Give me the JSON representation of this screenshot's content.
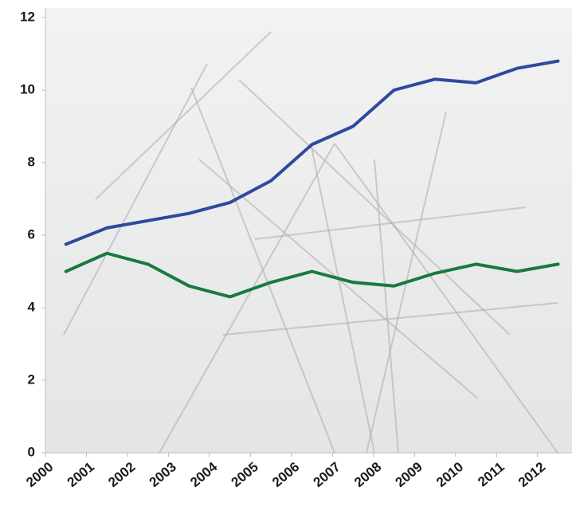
{
  "chart_data": {
    "type": "line",
    "x": [
      2000.5,
      2001.5,
      2002.5,
      2003.5,
      2004.5,
      2005.5,
      2006.5,
      2007.5,
      2008.5,
      2009.5,
      2010.5,
      2011.5,
      2012.5
    ],
    "series": [
      {
        "color": "#2e4a9e",
        "values": [
          5.75,
          6.2,
          6.4,
          6.6,
          6.9,
          7.5,
          8.5,
          9.0,
          10.0,
          10.3,
          10.2,
          10.6,
          10.8
        ]
      },
      {
        "color": "#1a7a3e",
        "values": [
          5.0,
          5.5,
          5.2,
          4.6,
          4.3,
          4.7,
          5.0,
          4.7,
          4.6,
          4.95,
          5.2,
          5.0,
          5.2
        ]
      }
    ],
    "xlim": [
      2000,
      2012.84
    ],
    "xticks": [
      2000,
      2001,
      2002,
      2003,
      2004,
      2005,
      2006,
      2007,
      2008,
      2009,
      2010,
      2011,
      2012
    ],
    "ylim": [
      0,
      12
    ],
    "yticks": [
      0,
      2,
      4,
      6,
      8,
      10,
      12
    ]
  }
}
